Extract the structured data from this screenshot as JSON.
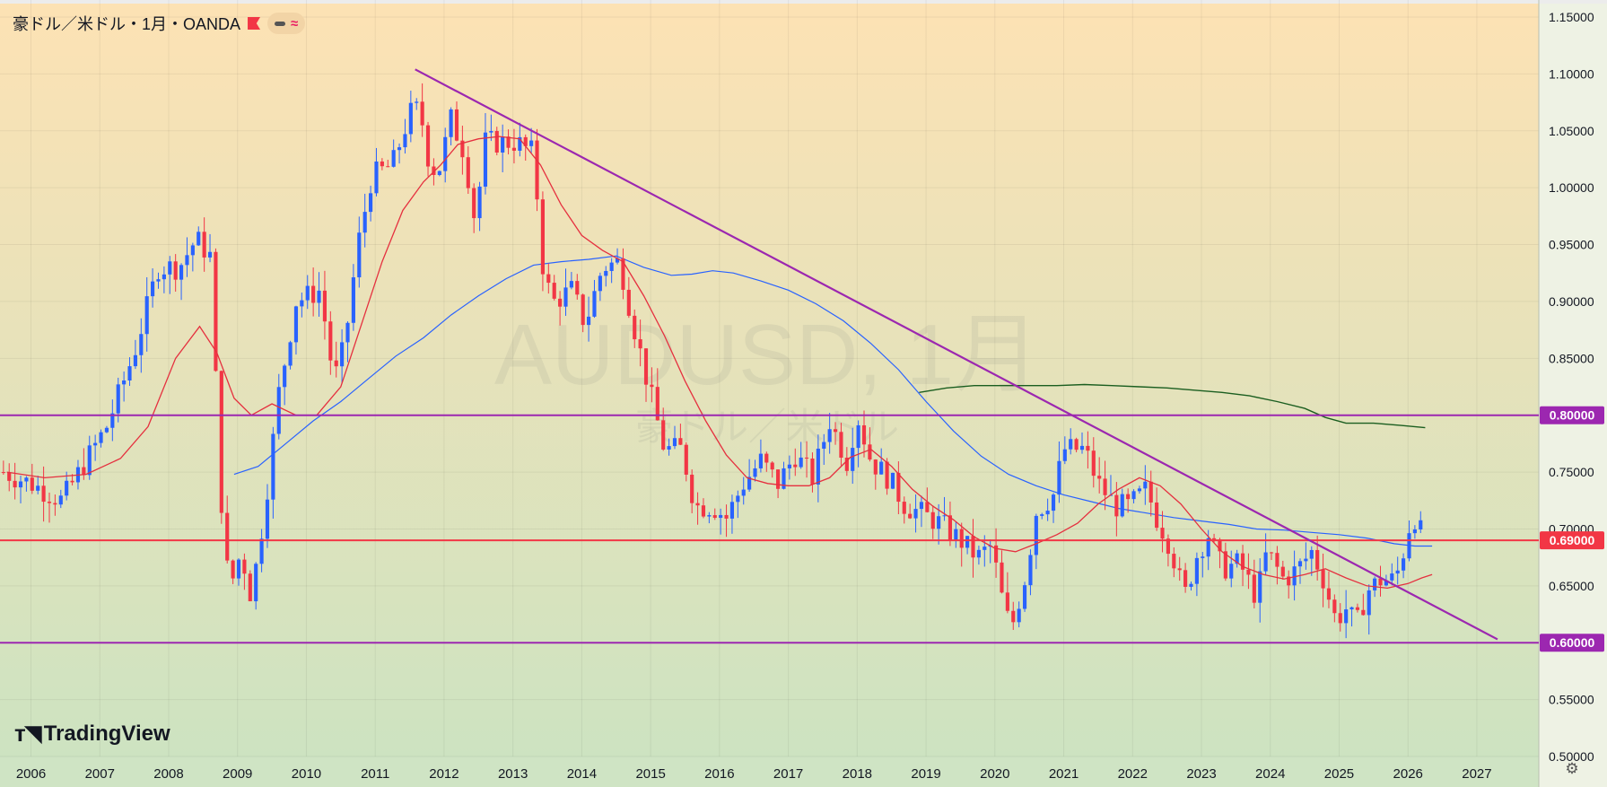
{
  "legend": {
    "title": "豪ドル／米ドル・1月・OANDA",
    "flag_icon": "flag-icon",
    "indicators_icon": "wave-icon"
  },
  "watermark": {
    "symbol": "AUDUSD, 1月",
    "description": "豪ドル／米ドル"
  },
  "branding": {
    "logo_text": "TradingView"
  },
  "colors": {
    "bg_top": "#fde2b4",
    "bg_bottom": "#cde3c1",
    "up": "#2962ff",
    "down": "#f23645",
    "purple": "#9c27b0",
    "red_line": "#f23645",
    "ma_red": "#e5303f",
    "ma_blue": "#2962ff",
    "ma_green": "#1b5e20"
  },
  "chart_data": {
    "type": "candlestick",
    "y_axis": {
      "ylim": [
        0.5,
        1.165
      ],
      "ticks": [
        "1.15000",
        "1.10000",
        "1.05000",
        "1.00000",
        "0.95000",
        "0.90000",
        "0.85000",
        "0.80000",
        "0.75000",
        "0.70000",
        "0.65000",
        "0.60000",
        "0.55000",
        "0.50000"
      ]
    },
    "x_axis": {
      "xlim": [
        2005.55,
        2027.9
      ],
      "ticks": [
        "2006",
        "2007",
        "2008",
        "2009",
        "2010",
        "2011",
        "2012",
        "2013",
        "2014",
        "2015",
        "2016",
        "2017",
        "2018",
        "2019",
        "2020",
        "2021",
        "2022",
        "2023",
        "2024",
        "2025",
        "2026",
        "2027"
      ]
    },
    "horizontal_lines": [
      {
        "price": 0.8,
        "label": "0.80000",
        "color": "purple"
      },
      {
        "price": 0.69,
        "label": "0.69000",
        "color": "red"
      },
      {
        "price": 0.6,
        "label": "0.60000",
        "color": "purple"
      }
    ],
    "trendline": {
      "from": [
        2011.58,
        1.104
      ],
      "to": [
        2027.3,
        0.603
      ]
    },
    "anchors": [
      [
        2005.6,
        0.75
      ],
      [
        2006.0,
        0.74
      ],
      [
        2006.45,
        0.725
      ],
      [
        2006.75,
        0.755
      ],
      [
        2007.1,
        0.79
      ],
      [
        2007.5,
        0.855
      ],
      [
        2007.85,
        0.93
      ],
      [
        2008.15,
        0.93
      ],
      [
        2008.4,
        0.955
      ],
      [
        2008.6,
        0.94
      ],
      [
        2008.7,
        0.81
      ],
      [
        2008.8,
        0.68
      ],
      [
        2008.9,
        0.65
      ],
      [
        2009.05,
        0.68
      ],
      [
        2009.2,
        0.64
      ],
      [
        2009.4,
        0.72
      ],
      [
        2009.6,
        0.82
      ],
      [
        2009.85,
        0.9
      ],
      [
        2010.2,
        0.91
      ],
      [
        2010.4,
        0.83
      ],
      [
        2010.55,
        0.86
      ],
      [
        2010.75,
        0.95
      ],
      [
        2010.95,
        1.01
      ],
      [
        2011.25,
        1.02
      ],
      [
        2011.5,
        1.065
      ],
      [
        2011.65,
        1.07
      ],
      [
        2011.75,
        1.03
      ],
      [
        2011.9,
        1.01
      ],
      [
        2012.1,
        1.06
      ],
      [
        2012.3,
        1.03
      ],
      [
        2012.45,
        0.97
      ],
      [
        2012.6,
        1.04
      ],
      [
        2012.85,
        1.04
      ],
      [
        2013.05,
        1.04
      ],
      [
        2013.3,
        1.03
      ],
      [
        2013.45,
        0.92
      ],
      [
        2013.6,
        0.9
      ],
      [
        2013.85,
        0.91
      ],
      [
        2014.05,
        0.88
      ],
      [
        2014.3,
        0.93
      ],
      [
        2014.55,
        0.935
      ],
      [
        2014.75,
        0.88
      ],
      [
        2014.95,
        0.83
      ],
      [
        2015.2,
        0.77
      ],
      [
        2015.45,
        0.77
      ],
      [
        2015.65,
        0.72
      ],
      [
        2015.9,
        0.72
      ],
      [
        2016.1,
        0.71
      ],
      [
        2016.35,
        0.74
      ],
      [
        2016.6,
        0.76
      ],
      [
        2016.85,
        0.74
      ],
      [
        2017.1,
        0.765
      ],
      [
        2017.35,
        0.745
      ],
      [
        2017.6,
        0.795
      ],
      [
        2017.85,
        0.76
      ],
      [
        2018.0,
        0.8
      ],
      [
        2018.2,
        0.76
      ],
      [
        2018.45,
        0.745
      ],
      [
        2018.7,
        0.72
      ],
      [
        2018.9,
        0.715
      ],
      [
        2019.2,
        0.705
      ],
      [
        2019.5,
        0.69
      ],
      [
        2019.75,
        0.675
      ],
      [
        2019.95,
        0.685
      ],
      [
        2020.15,
        0.625
      ],
      [
        2020.25,
        0.615
      ],
      [
        2020.45,
        0.66
      ],
      [
        2020.6,
        0.715
      ],
      [
        2020.85,
        0.73
      ],
      [
        2021.0,
        0.77
      ],
      [
        2021.3,
        0.77
      ],
      [
        2021.5,
        0.74
      ],
      [
        2021.75,
        0.72
      ],
      [
        2021.95,
        0.72
      ],
      [
        2022.2,
        0.735
      ],
      [
        2022.35,
        0.71
      ],
      [
        2022.55,
        0.685
      ],
      [
        2022.75,
        0.64
      ],
      [
        2022.95,
        0.68
      ],
      [
        2023.1,
        0.695
      ],
      [
        2023.3,
        0.665
      ],
      [
        2023.55,
        0.67
      ],
      [
        2023.8,
        0.64
      ],
      [
        2023.95,
        0.68
      ],
      [
        2024.2,
        0.655
      ],
      [
        2024.4,
        0.665
      ],
      [
        2024.6,
        0.68
      ],
      [
        2024.75,
        0.66
      ],
      [
        2024.95,
        0.62
      ],
      [
        2025.1,
        0.63
      ],
      [
        2025.25,
        0.615
      ],
      [
        2025.4,
        0.645
      ],
      [
        2025.6,
        0.655
      ],
      [
        2025.8,
        0.655
      ],
      [
        2025.9,
        0.67
      ],
      [
        2026.0,
        0.7
      ],
      [
        2026.1,
        0.71
      ],
      [
        2026.2,
        0.695
      ]
    ],
    "ma_red": [
      [
        2005.65,
        0.75
      ],
      [
        2006.2,
        0.745
      ],
      [
        2006.8,
        0.748
      ],
      [
        2007.3,
        0.762
      ],
      [
        2007.7,
        0.79
      ],
      [
        2008.1,
        0.85
      ],
      [
        2008.45,
        0.878
      ],
      [
        2008.7,
        0.855
      ],
      [
        2008.95,
        0.815
      ],
      [
        2009.2,
        0.8
      ],
      [
        2009.5,
        0.81
      ],
      [
        2009.85,
        0.8
      ],
      [
        2010.15,
        0.8
      ],
      [
        2010.5,
        0.825
      ],
      [
        2010.8,
        0.88
      ],
      [
        2011.1,
        0.935
      ],
      [
        2011.4,
        0.98
      ],
      [
        2011.7,
        1.005
      ],
      [
        2011.95,
        1.02
      ],
      [
        2012.2,
        1.038
      ],
      [
        2012.5,
        1.043
      ],
      [
        2012.8,
        1.045
      ],
      [
        2013.1,
        1.043
      ],
      [
        2013.4,
        1.02
      ],
      [
        2013.7,
        0.985
      ],
      [
        2014.0,
        0.958
      ],
      [
        2014.3,
        0.945
      ],
      [
        2014.6,
        0.935
      ],
      [
        2014.9,
        0.905
      ],
      [
        2015.2,
        0.87
      ],
      [
        2015.5,
        0.83
      ],
      [
        2015.8,
        0.795
      ],
      [
        2016.1,
        0.765
      ],
      [
        2016.4,
        0.745
      ],
      [
        2016.7,
        0.74
      ],
      [
        2017.0,
        0.738
      ],
      [
        2017.3,
        0.738
      ],
      [
        2017.6,
        0.745
      ],
      [
        2017.9,
        0.763
      ],
      [
        2018.2,
        0.77
      ],
      [
        2018.5,
        0.755
      ],
      [
        2018.8,
        0.735
      ],
      [
        2019.1,
        0.72
      ],
      [
        2019.4,
        0.708
      ],
      [
        2019.7,
        0.693
      ],
      [
        2020.0,
        0.683
      ],
      [
        2020.3,
        0.68
      ],
      [
        2020.6,
        0.687
      ],
      [
        2020.9,
        0.695
      ],
      [
        2021.2,
        0.705
      ],
      [
        2021.5,
        0.722
      ],
      [
        2021.8,
        0.735
      ],
      [
        2022.1,
        0.745
      ],
      [
        2022.4,
        0.738
      ],
      [
        2022.7,
        0.722
      ],
      [
        2023.0,
        0.7
      ],
      [
        2023.3,
        0.68
      ],
      [
        2023.6,
        0.667
      ],
      [
        2023.9,
        0.66
      ],
      [
        2024.2,
        0.656
      ],
      [
        2024.5,
        0.66
      ],
      [
        2024.8,
        0.665
      ],
      [
        2025.1,
        0.657
      ],
      [
        2025.4,
        0.65
      ],
      [
        2025.7,
        0.648
      ],
      [
        2026.0,
        0.652
      ],
      [
        2026.2,
        0.657
      ],
      [
        2026.35,
        0.66
      ]
    ],
    "ma_blue": [
      [
        2008.95,
        0.748
      ],
      [
        2009.3,
        0.755
      ],
      [
        2009.7,
        0.775
      ],
      [
        2010.1,
        0.795
      ],
      [
        2010.5,
        0.812
      ],
      [
        2010.9,
        0.832
      ],
      [
        2011.3,
        0.852
      ],
      [
        2011.7,
        0.868
      ],
      [
        2012.1,
        0.888
      ],
      [
        2012.5,
        0.905
      ],
      [
        2012.9,
        0.92
      ],
      [
        2013.3,
        0.932
      ],
      [
        2013.7,
        0.935
      ],
      [
        2014.1,
        0.937
      ],
      [
        2014.5,
        0.94
      ],
      [
        2014.9,
        0.93
      ],
      [
        2015.3,
        0.923
      ],
      [
        2015.6,
        0.924
      ],
      [
        2015.9,
        0.927
      ],
      [
        2016.2,
        0.925
      ],
      [
        2016.6,
        0.918
      ],
      [
        2017.0,
        0.91
      ],
      [
        2017.4,
        0.898
      ],
      [
        2017.8,
        0.883
      ],
      [
        2018.2,
        0.863
      ],
      [
        2018.6,
        0.84
      ],
      [
        2019.0,
        0.812
      ],
      [
        2019.4,
        0.786
      ],
      [
        2019.8,
        0.764
      ],
      [
        2020.2,
        0.748
      ],
      [
        2020.6,
        0.738
      ],
      [
        2021.0,
        0.73
      ],
      [
        2021.4,
        0.724
      ],
      [
        2021.8,
        0.718
      ],
      [
        2022.2,
        0.714
      ],
      [
        2022.6,
        0.71
      ],
      [
        2023.0,
        0.707
      ],
      [
        2023.4,
        0.704
      ],
      [
        2023.8,
        0.7
      ],
      [
        2024.2,
        0.699
      ],
      [
        2024.6,
        0.697
      ],
      [
        2025.0,
        0.695
      ],
      [
        2025.4,
        0.692
      ],
      [
        2025.8,
        0.687
      ],
      [
        2026.1,
        0.685
      ],
      [
        2026.35,
        0.685
      ]
    ],
    "ma_green": [
      [
        2018.9,
        0.82
      ],
      [
        2019.3,
        0.824
      ],
      [
        2019.7,
        0.826
      ],
      [
        2020.1,
        0.826
      ],
      [
        2020.5,
        0.826
      ],
      [
        2020.9,
        0.826
      ],
      [
        2021.3,
        0.827
      ],
      [
        2021.7,
        0.826
      ],
      [
        2022.1,
        0.825
      ],
      [
        2022.5,
        0.824
      ],
      [
        2022.9,
        0.822
      ],
      [
        2023.3,
        0.82
      ],
      [
        2023.7,
        0.817
      ],
      [
        2024.1,
        0.812
      ],
      [
        2024.5,
        0.806
      ],
      [
        2024.8,
        0.798
      ],
      [
        2025.1,
        0.793
      ],
      [
        2025.5,
        0.793
      ],
      [
        2025.9,
        0.791
      ],
      [
        2026.25,
        0.789
      ]
    ]
  }
}
